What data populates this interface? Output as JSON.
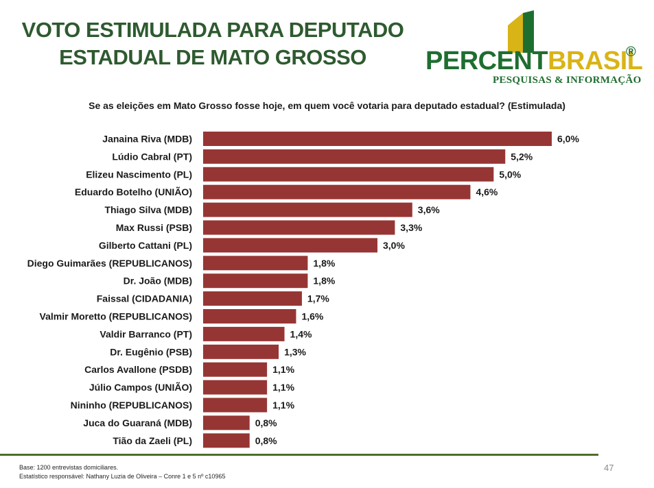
{
  "header": {
    "title_line1": "VOTO ESTIMULADA PARA DEPUTADO",
    "title_line2": "ESTADUAL DE MATO GROSSO"
  },
  "logo": {
    "name_part1": "PERCENT",
    "name_part2": "BRASIL",
    "registered": "®",
    "tagline": "PESQUISAS & INFORMAÇÃO",
    "colors": {
      "green": "#1e6e30",
      "yellow": "#d9b417"
    }
  },
  "question": "Se as eleições em Mato Grosso fosse hoje, em quem você votaria para deputado estadual? (Estimulada)",
  "chart_data": {
    "type": "bar",
    "orientation": "horizontal",
    "bar_color": "#963634",
    "xlim": [
      0,
      6.0
    ],
    "categories": [
      "Janaina Riva (MDB)",
      "Lúdio Cabral (PT)",
      "Elizeu Nascimento (PL)",
      "Eduardo Botelho (UNIÃO)",
      "Thiago Silva (MDB)",
      "Max Russi (PSB)",
      "Gilberto Cattani (PL)",
      "Diego Guimarães (REPUBLICANOS)",
      "Dr. João (MDB)",
      "Faissal (CIDADANIA)",
      "Valmir Moretto (REPUBLICANOS)",
      "Valdir Barranco (PT)",
      "Dr. Eugênio (PSB)",
      "Carlos Avallone (PSDB)",
      "Júlio Campos (UNIÃO)",
      "Nininho (REPUBLICANOS)",
      "Juca do Guaraná (MDB)",
      "Tião da Zaeli (PL)"
    ],
    "values": [
      6.0,
      5.2,
      5.0,
      4.6,
      3.6,
      3.3,
      3.0,
      1.8,
      1.8,
      1.7,
      1.6,
      1.4,
      1.3,
      1.1,
      1.1,
      1.1,
      0.8,
      0.8
    ],
    "data_labels": [
      "6,0%",
      "5,2%",
      "5,0%",
      "4,6%",
      "3,6%",
      "3,3%",
      "3,0%",
      "1,8%",
      "1,8%",
      "1,7%",
      "1,6%",
      "1,4%",
      "1,3%",
      "1,1%",
      "1,1%",
      "1,1%",
      "0,8%",
      "0,8%"
    ],
    "grid": false,
    "legend": "none"
  },
  "footer": {
    "base": "Base: 1200 entrevistas domiciliares.",
    "statistician": "Estatístico responsável: Nathany Luzia de Oliveira – Conre 1 e 5 nº c10965",
    "page_number": "47"
  }
}
